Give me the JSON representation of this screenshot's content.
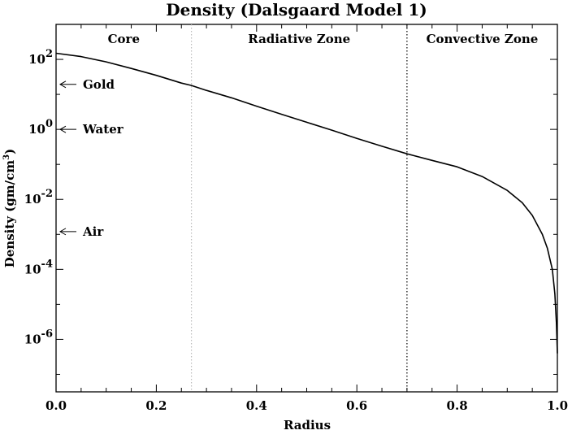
{
  "chart_data": {
    "type": "line",
    "title": "Density (Dalsgaard Model 1)",
    "xlabel": "Radius",
    "ylabel_main": "Density (gm/cm",
    "ylabel_sup": "3",
    "ylabel_tail": ")",
    "xlim": [
      0.0,
      1.0
    ],
    "ylim_log10": [
      -7.5,
      3.0
    ],
    "y_scale": "log",
    "grid": false,
    "x_ticks": [
      {
        "value": 0.0,
        "label": "0.0"
      },
      {
        "value": 0.2,
        "label": "0.2"
      },
      {
        "value": 0.4,
        "label": "0.4"
      },
      {
        "value": 0.6,
        "label": "0.6"
      },
      {
        "value": 0.8,
        "label": "0.8"
      },
      {
        "value": 1.0,
        "label": "1.0"
      }
    ],
    "y_ticks": [
      {
        "exp": 2,
        "base": "10",
        "sup": "2"
      },
      {
        "exp": 0,
        "base": "10",
        "sup": "0"
      },
      {
        "exp": -2,
        "base": "10",
        "sup": "-2"
      },
      {
        "exp": -4,
        "base": "10",
        "sup": "-4"
      },
      {
        "exp": -6,
        "base": "10",
        "sup": "-6"
      }
    ],
    "series": [
      {
        "x": [
          0.0,
          0.05,
          0.1,
          0.15,
          0.2,
          0.25,
          0.27,
          0.3,
          0.35,
          0.4,
          0.45,
          0.5,
          0.55,
          0.6,
          0.65,
          0.7,
          0.75,
          0.8,
          0.85,
          0.9,
          0.93,
          0.95,
          0.97,
          0.98,
          0.99,
          0.995,
          0.998,
          1.0
        ],
        "y": [
          150,
          120,
          85,
          55,
          35,
          21,
          18,
          13,
          8.0,
          4.6,
          2.7,
          1.6,
          0.95,
          0.55,
          0.33,
          0.2,
          0.13,
          0.085,
          0.045,
          0.018,
          0.008,
          0.0035,
          0.001,
          0.0004,
          0.0001,
          2e-05,
          3e-06,
          4e-07
        ]
      }
    ],
    "vertical_markers": [
      {
        "x": 0.27,
        "style": "dotted",
        "color": "#bbbbbb"
      },
      {
        "x": 0.7,
        "style": "dotted",
        "color": "#000000"
      }
    ],
    "regions": [
      {
        "label": "Core",
        "x": 0.135
      },
      {
        "label": "Radiative Zone",
        "x": 0.485
      },
      {
        "label": "Convective Zone",
        "x": 0.85
      }
    ],
    "reference_markers": [
      {
        "label": "Gold",
        "y": 19.3
      },
      {
        "label": "Water",
        "y": 1.0
      },
      {
        "label": "Air",
        "y": 0.0012
      }
    ]
  }
}
